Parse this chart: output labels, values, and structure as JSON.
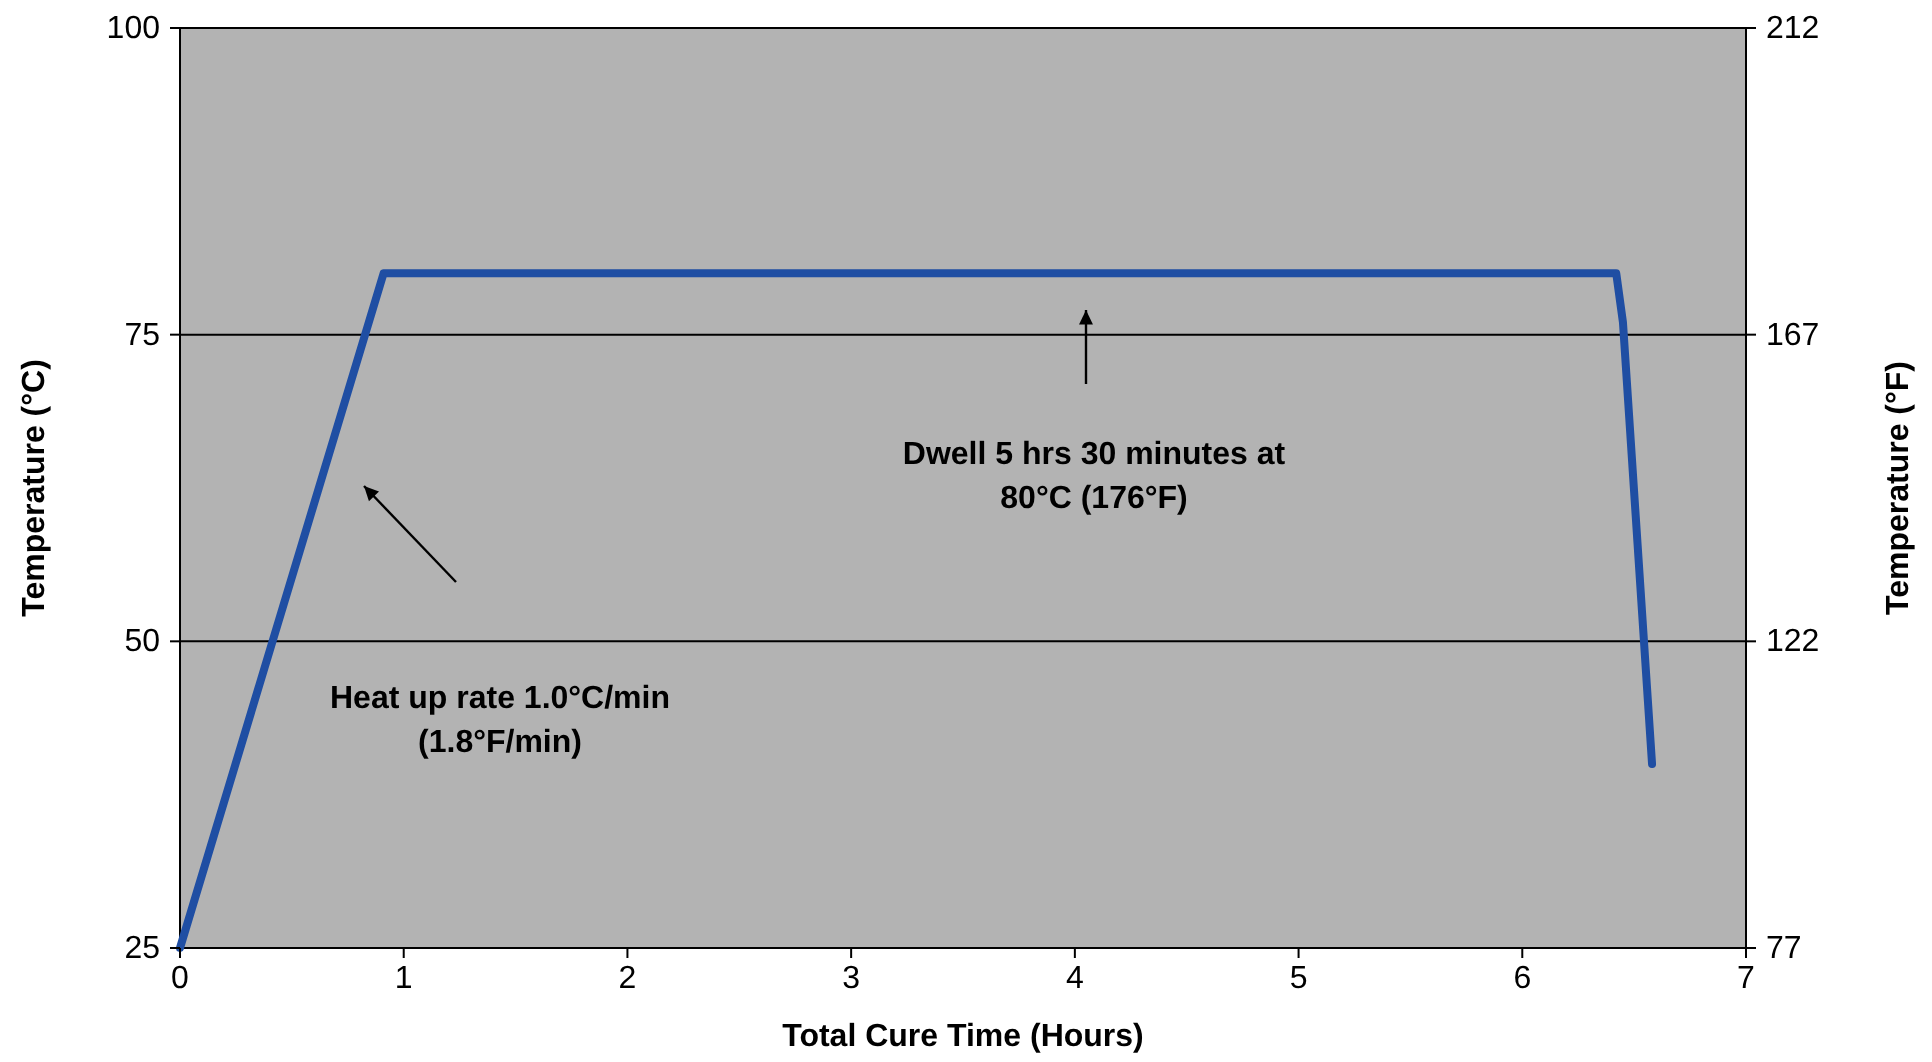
{
  "chart_data": {
    "type": "line",
    "xlabel": "Total Cure Time (Hours)",
    "ylabel": "Temperature (°C)",
    "y2label": "Temperature (°F)",
    "xlim": [
      0,
      7
    ],
    "xticks": [
      0,
      1,
      2,
      3,
      4,
      5,
      6,
      7
    ],
    "ylim": [
      25,
      100
    ],
    "yticks": [
      25,
      50,
      75,
      100
    ],
    "y2lim": [
      77,
      212
    ],
    "y2ticks": [
      77,
      122,
      167,
      212
    ],
    "grid": "y",
    "marker": "none",
    "line_style": "solid",
    "series": [
      {
        "color": "#1f4ea3",
        "x": [
          0,
          0.91,
          6.42,
          6.45,
          6.58
        ],
        "values": [
          25,
          80,
          80,
          76,
          40
        ]
      }
    ],
    "annotations": [
      "Heat up rate 1.0°C/min\n(1.8°F/min)",
      "Dwell 5 hrs 30 minutes at\n80°C (176°F)"
    ]
  }
}
